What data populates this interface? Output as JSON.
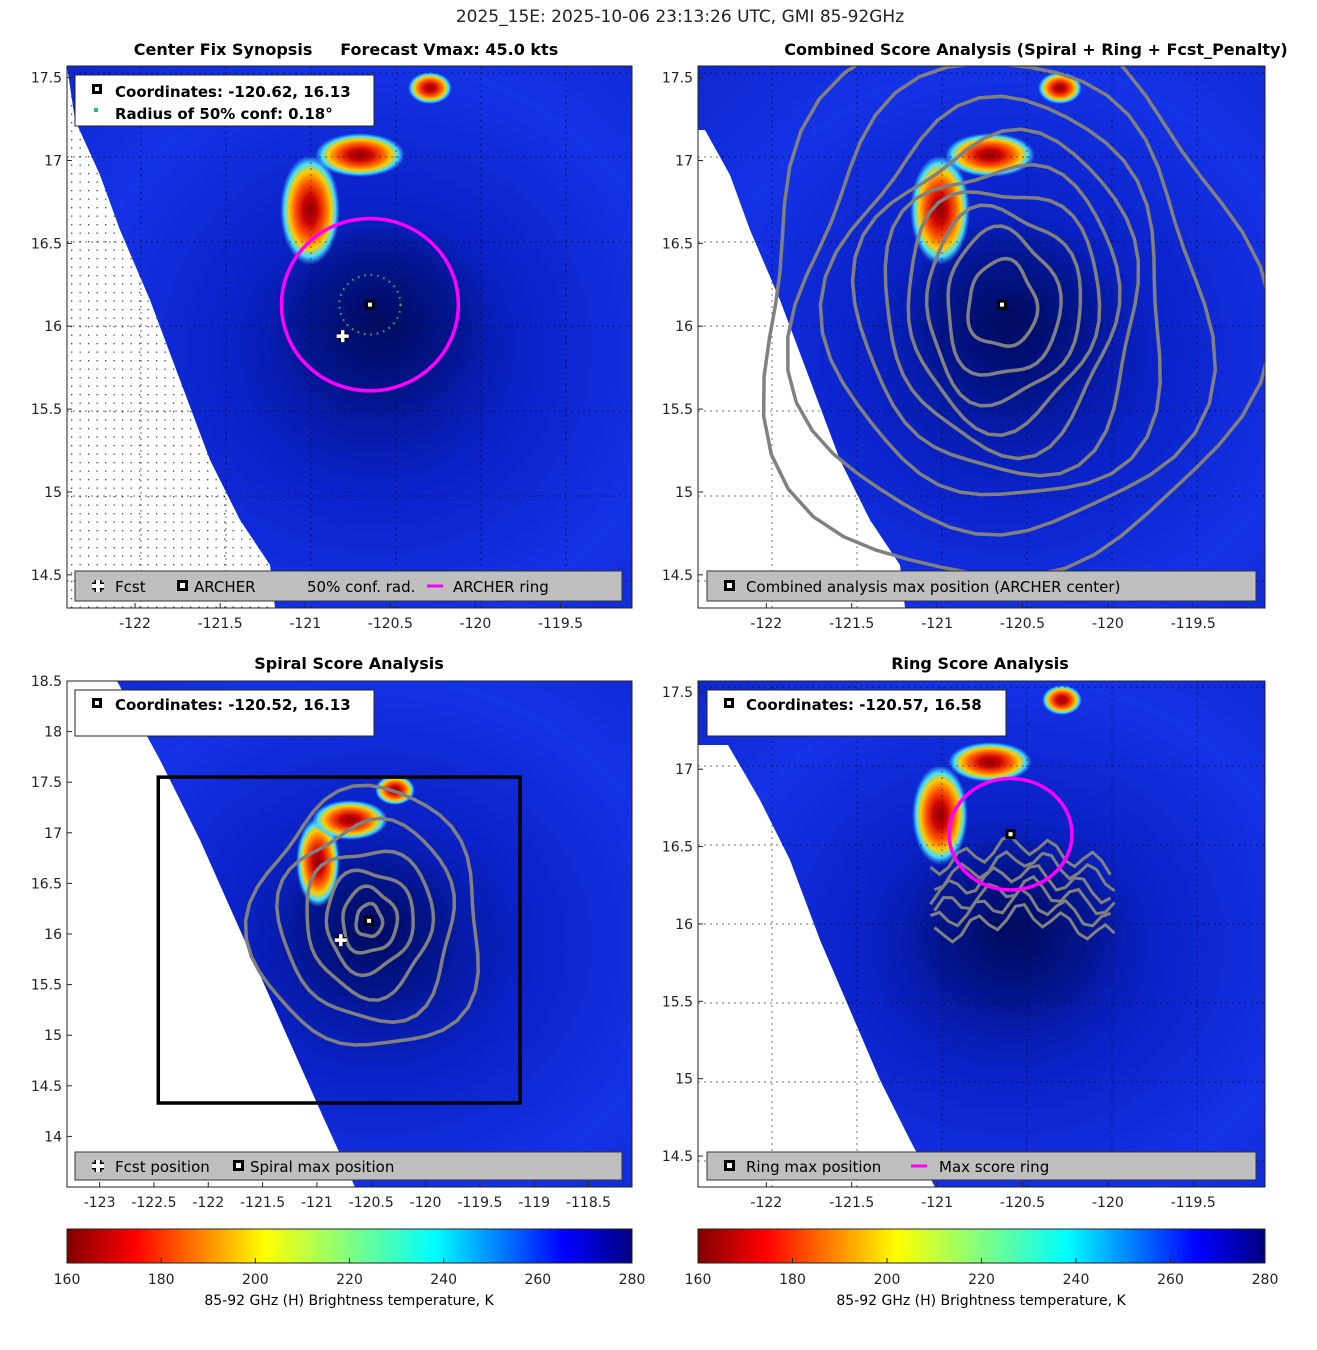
{
  "figure": {
    "title": "2025_15E: 2025-10-06 23:13:26 UTC, GMI 85-92GHz"
  },
  "colors": {
    "fcst_marker": "#ffffff",
    "archer_marker": "#000000",
    "conf_dots": "#22c55e",
    "ring": "#ff00ff",
    "contour": "#808080",
    "legend_bg": "#bfbfbf",
    "box": "#000000"
  },
  "panels": {
    "tl": {
      "title": "Center Fix Synopsis     Forecast Vmax: 45.0 kts",
      "info_lines": [
        "Coordinates: -120.62, 16.13",
        "Radius of 50% conf: 0.18°"
      ],
      "legend": {
        "fcst": "Fcst",
        "archer": "ARCHER",
        "conf": "50% conf. rad.",
        "ring": "ARCHER ring"
      }
    },
    "tr": {
      "title": "Combined Score Analysis (Spiral + Ring + Fcst_Penalty)",
      "legend": {
        "center": "Combined analysis max position (ARCHER center)"
      }
    },
    "bl": {
      "title": "Spiral Score Analysis",
      "info_lines": [
        "Coordinates: -120.52, 16.13"
      ],
      "legend": {
        "fcst": "Fcst position",
        "spiral": "Spiral max position"
      }
    },
    "br": {
      "title": "Ring Score Analysis",
      "info_lines": [
        "Coordinates: -120.57, 16.58"
      ],
      "legend": {
        "ring_max": "Ring max position",
        "max_ring": "Max score ring"
      }
    }
  },
  "colorbars": [
    {
      "label": "85-92 GHz (H) Brightness temperature, K",
      "ticks": [
        "160",
        "180",
        "200",
        "220",
        "240",
        "260",
        "280"
      ]
    },
    {
      "label": "85-92 GHz (H) Brightness temperature, K",
      "ticks": [
        "160",
        "180",
        "200",
        "220",
        "240",
        "260",
        "280"
      ]
    }
  ],
  "chart_data": [
    {
      "panel": "Center Fix Synopsis",
      "type": "heatmap",
      "xlim": [
        -122.4,
        -119.08
      ],
      "ylim": [
        14.3,
        17.57
      ],
      "xticks": [
        -122,
        -121.5,
        -121,
        -120.5,
        -120,
        -119.5
      ],
      "xtick_labels": [
        "-122",
        "-121.5",
        "-121",
        "-120.5",
        "-120",
        "-119.5"
      ],
      "yticks": [
        14.5,
        15,
        15.5,
        16,
        16.5,
        17,
        17.5
      ],
      "ytick_labels": [
        "14.5",
        "15",
        "15.5",
        "16",
        "16.5",
        "17",
        "17.5"
      ],
      "colorscale_k": [
        160,
        280
      ],
      "fcst": [
        -120.78,
        15.94
      ],
      "archer_center": [
        -120.62,
        16.13
      ],
      "conf_radius_deg": 0.18,
      "archer_ring_radius_deg": 0.52
    },
    {
      "panel": "Combined Score Analysis",
      "type": "heatmap",
      "xlim": [
        -122.4,
        -119.08
      ],
      "ylim": [
        14.3,
        17.57
      ],
      "xticks": [
        -122,
        -121.5,
        -121,
        -120.5,
        -120,
        -119.5
      ],
      "xtick_labels": [
        "-122",
        "-121.5",
        "-121",
        "-120.5",
        "-120",
        "-119.5"
      ],
      "yticks": [
        14.5,
        15,
        15.5,
        16,
        16.5,
        17,
        17.5
      ],
      "ytick_labels": [
        "14.5",
        "15",
        "15.5",
        "16",
        "16.5",
        "17",
        "17.5"
      ],
      "center": [
        -120.62,
        16.13
      ],
      "contour_rings_deg": [
        [
          0.2,
          0.26
        ],
        [
          0.33,
          0.44
        ],
        [
          0.45,
          0.58
        ],
        [
          0.56,
          0.72
        ],
        [
          0.68,
          0.86
        ],
        [
          0.82,
          1.02
        ],
        [
          0.98,
          1.2
        ],
        [
          1.2,
          1.42
        ],
        [
          1.45,
          1.68
        ]
      ]
    },
    {
      "panel": "Spiral Score Analysis",
      "type": "heatmap",
      "xlim": [
        -123.3,
        -118.1
      ],
      "ylim": [
        13.5,
        18.5
      ],
      "xticks": [
        -123,
        -122.5,
        -122,
        -121.5,
        -121,
        -120.5,
        -120,
        -119.5,
        -119,
        -118.5
      ],
      "xtick_labels": [
        "-123",
        "-122.5",
        "-122",
        "-121.5",
        "-121",
        "-120.5",
        "-120",
        "-119.5",
        "-119",
        "-118.5"
      ],
      "yticks": [
        14,
        14.5,
        15,
        15.5,
        16,
        16.5,
        17,
        17.5,
        18,
        18.5
      ],
      "ytick_labels": [
        "14",
        "14.5",
        "15",
        "15.5",
        "16",
        "16.5",
        "17",
        "17.5",
        "18",
        "18.5"
      ],
      "fcst": [
        -120.78,
        15.94
      ],
      "spiral_max": [
        -120.52,
        16.13
      ],
      "search_box": {
        "lon": [
          -122.46,
          -119.13
        ],
        "lat": [
          14.33,
          17.55
        ]
      },
      "contour_rings_deg": [
        [
          0.12,
          0.16
        ],
        [
          0.25,
          0.32
        ],
        [
          0.4,
          0.5
        ],
        [
          0.58,
          0.72
        ],
        [
          0.8,
          0.98
        ],
        [
          1.05,
          1.28
        ]
      ]
    },
    {
      "panel": "Ring Score Analysis",
      "type": "heatmap",
      "xlim": [
        -122.4,
        -119.08
      ],
      "ylim": [
        14.3,
        17.57
      ],
      "xticks": [
        -122,
        -121.5,
        -121,
        -120.5,
        -120,
        -119.5
      ],
      "xtick_labels": [
        "-122",
        "-121.5",
        "-121",
        "-120.5",
        "-120",
        "-119.5"
      ],
      "yticks": [
        14.5,
        15,
        15.5,
        16,
        16.5,
        17,
        17.5
      ],
      "ytick_labels": [
        "14.5",
        "15",
        "15.5",
        "16",
        "16.5",
        "17",
        "17.5"
      ],
      "ring_max": [
        -120.57,
        16.58
      ],
      "max_ring_center": [
        -120.57,
        16.58
      ],
      "max_ring_radius_deg": 0.36
    }
  ]
}
